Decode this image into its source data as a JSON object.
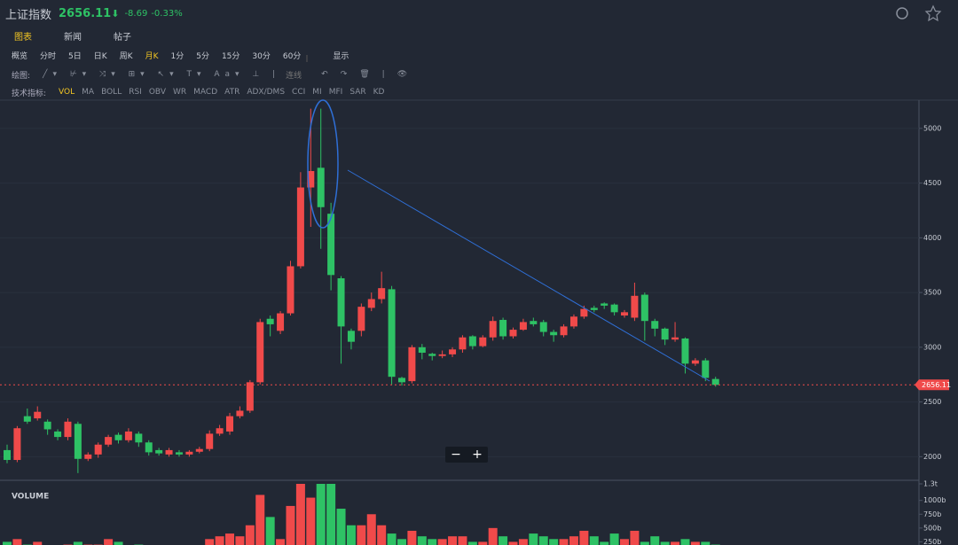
{
  "header": {
    "title": "上证指数",
    "price": "2656.11",
    "change": "-8.69",
    "change_pct": "-0.33%"
  },
  "tabs": {
    "items": [
      "图表",
      "新闻",
      "帖子"
    ],
    "active": 0
  },
  "periods": {
    "items": [
      "概览",
      "分时",
      "5日",
      "日K",
      "周K",
      "月K",
      "1分",
      "5分",
      "15分",
      "30分",
      "60分"
    ],
    "active": 5,
    "display": "显示"
  },
  "drawing": {
    "label": "绘图:",
    "connect": "连线"
  },
  "indicators": {
    "label": "技术指标:",
    "items": [
      "VOL",
      "MA",
      "BOLL",
      "RSI",
      "OBV",
      "WR",
      "MACD",
      "ATR",
      "ADX/DMS",
      "CCI",
      "MI",
      "MFI",
      "SAR",
      "KD"
    ],
    "active": 0
  },
  "chart_data": {
    "type": "candlestick",
    "up_color": "#f04a4a",
    "down_color": "#2ec265",
    "open": [
      2060,
      1970,
      2370,
      2350,
      2320,
      2230,
      2180,
      2300,
      1980,
      2020,
      2110,
      2200,
      2150,
      2210,
      2130,
      2060,
      2020,
      2040,
      2020,
      2045,
      2070,
      2210,
      2230,
      2370,
      2420,
      2680,
      3260,
      3150,
      3310,
      3740,
      4460,
      4640,
      4220,
      3630,
      3150,
      3150,
      3360,
      3440,
      3530,
      2720,
      2690,
      3000,
      2940,
      2920,
      2935,
      2980,
      3100,
      3010,
      3090,
      3250,
      3100,
      3160,
      3240,
      3230,
      3140,
      3110,
      3190,
      3280,
      3360,
      3400,
      3390,
      3290,
      3270,
      3480,
      3240,
      3170,
      3070,
      3080,
      2850,
      2880,
      2710
    ],
    "high": [
      2110,
      2280,
      2440,
      2460,
      2340,
      2250,
      2350,
      2320,
      2040,
      2130,
      2200,
      2220,
      2260,
      2230,
      2150,
      2080,
      2080,
      2060,
      2060,
      2090,
      2240,
      2290,
      2400,
      2460,
      2700,
      3260,
      3290,
      3330,
      3790,
      4600,
      5180,
      5180,
      4320,
      3650,
      3170,
      3400,
      3500,
      3690,
      3560,
      2730,
      3020,
      3030,
      2950,
      2970,
      3000,
      3110,
      3110,
      3110,
      3280,
      3270,
      3180,
      3260,
      3270,
      3250,
      3160,
      3210,
      3300,
      3380,
      3380,
      3410,
      3400,
      3340,
      3590,
      3500,
      3260,
      3180,
      3230,
      3090,
      2900,
      2900,
      2730
    ],
    "low": [
      1940,
      1950,
      2300,
      2330,
      2200,
      2150,
      2150,
      1850,
      1960,
      1990,
      2090,
      2120,
      2130,
      2090,
      2010,
      2010,
      2000,
      2000,
      2000,
      2030,
      2050,
      2190,
      2200,
      2350,
      2400,
      2660,
      3100,
      3120,
      3290,
      3720,
      4100,
      3900,
      3520,
      2850,
      2980,
      3100,
      3330,
      3400,
      2660,
      2650,
      2670,
      2890,
      2880,
      2900,
      2910,
      2950,
      2980,
      3000,
      3060,
      3070,
      3080,
      3150,
      3190,
      3100,
      3050,
      3090,
      3170,
      3260,
      3320,
      3350,
      3290,
      3270,
      3240,
      3060,
      3100,
      3020,
      3050,
      2760,
      2830,
      2690,
      2640
    ],
    "close": [
      1970,
      2260,
      2320,
      2410,
      2250,
      2180,
      2320,
      1980,
      2020,
      2110,
      2180,
      2150,
      2230,
      2130,
      2040,
      2030,
      2060,
      2020,
      2045,
      2070,
      2210,
      2260,
      2370,
      2420,
      2680,
      3230,
      3210,
      3310,
      3740,
      4460,
      4610,
      4280,
      3660,
      3190,
      3050,
      3370,
      3440,
      3540,
      2730,
      2680,
      3000,
      2950,
      2920,
      2935,
      2980,
      3090,
      3010,
      3090,
      3240,
      3100,
      3160,
      3230,
      3210,
      3140,
      3110,
      3190,
      3280,
      3350,
      3340,
      3380,
      3320,
      3320,
      3470,
      3240,
      3170,
      3070,
      3090,
      2850,
      2880,
      2720,
      2656.11
    ],
    "ylim": [
      1784,
      5258
    ],
    "yticks": [
      2000,
      2500,
      3000,
      3500,
      4000,
      4500,
      5000
    ],
    "volume": {
      "title": "VOLUME",
      "values": [
        250,
        300,
        200,
        250,
        150,
        150,
        200,
        250,
        200,
        200,
        300,
        250,
        150,
        200,
        150,
        150,
        150,
        100,
        150,
        100,
        300,
        350,
        400,
        350,
        550,
        1100,
        700,
        300,
        900,
        1300,
        1050,
        1300,
        1300,
        850,
        550,
        550,
        750,
        550,
        400,
        300,
        450,
        350,
        300,
        300,
        350,
        350,
        250,
        250,
        500,
        350,
        250,
        300,
        400,
        350,
        300,
        300,
        350,
        450,
        350,
        250,
        400,
        300,
        450,
        250,
        350,
        250,
        250,
        300,
        250,
        250,
        200
      ],
      "ylim": [
        0,
        1300
      ],
      "yticks": [
        {
          "value": 250,
          "label": "250b"
        },
        {
          "value": 500,
          "label": "500b"
        },
        {
          "value": 750,
          "label": "750b"
        },
        {
          "value": 1000,
          "label": "1000b"
        },
        {
          "value": 1300,
          "label": "1.3t"
        }
      ]
    }
  }
}
